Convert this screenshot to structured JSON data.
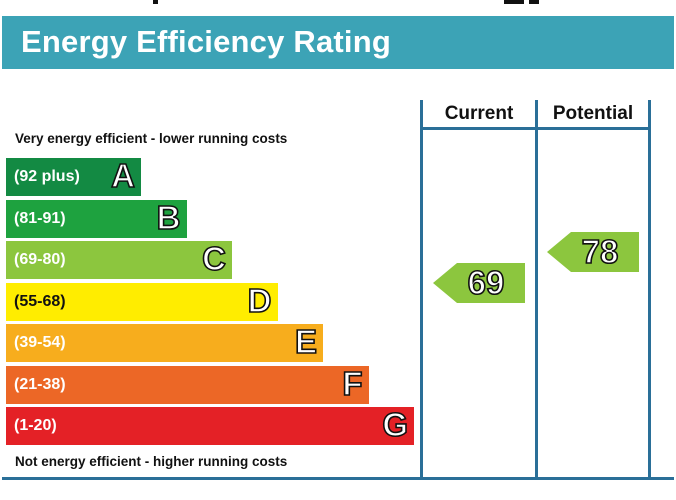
{
  "title": "Energy Efficiency Rating",
  "colors": {
    "header": "#3ca3b6",
    "border": "#2a6f98",
    "A": "#138a43",
    "B": "#1ea23f",
    "C": "#8cc63e",
    "D": "#ffed00",
    "E": "#f7ad1d",
    "F": "#ec6726",
    "G": "#e42126"
  },
  "chart_data": {
    "type": "bar",
    "title": "Energy Efficiency Rating",
    "top_note": "Very energy efficient - lower running costs",
    "bottom_note": "Not energy efficient - higher running costs",
    "bands": [
      {
        "letter": "A",
        "range": "(92 plus)",
        "color": "#138a43"
      },
      {
        "letter": "B",
        "range": "(81-91)",
        "color": "#1ea23f"
      },
      {
        "letter": "C",
        "range": "(69-80)",
        "color": "#8cc63e"
      },
      {
        "letter": "D",
        "range": "(55-68)",
        "color": "#ffed00"
      },
      {
        "letter": "E",
        "range": "(39-54)",
        "color": "#f7ad1d"
      },
      {
        "letter": "F",
        "range": "(21-38)",
        "color": "#ec6726"
      },
      {
        "letter": "G",
        "range": "(1-20)",
        "color": "#e42126"
      }
    ],
    "columns": [
      "Current",
      "Potential"
    ],
    "ratings": [
      {
        "column": "Current",
        "value": 69,
        "band": "C",
        "color": "#8cc63e"
      },
      {
        "column": "Potential",
        "value": 78,
        "band": "C",
        "color": "#8cc63e"
      }
    ]
  }
}
